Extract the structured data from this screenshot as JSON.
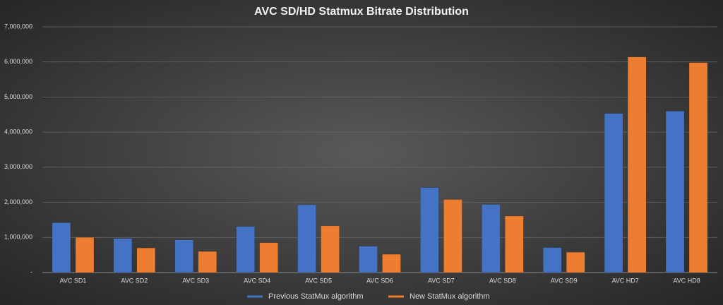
{
  "chart_data": {
    "type": "bar",
    "title": "AVC SD/HD Statmux Bitrate Distribution",
    "categories": [
      "AVC SD1",
      "AVC SD2",
      "AVC SD3",
      "AVC SD4",
      "AVC SD5",
      "AVC SD6",
      "AVC SD7",
      "AVC SD8",
      "AVC SD9",
      "AVC HD7",
      "AVC HD8"
    ],
    "series": [
      {
        "name": "Previous StatMux algorithm",
        "color": "#4472c4",
        "values": [
          1420000,
          970000,
          930000,
          1310000,
          1930000,
          750000,
          2420000,
          1940000,
          710000,
          4530000,
          4600000
        ]
      },
      {
        "name": "New StatMux algorithm",
        "color": "#ed7d31",
        "values": [
          1000000,
          700000,
          600000,
          850000,
          1330000,
          520000,
          2080000,
          1610000,
          580000,
          6140000,
          5980000
        ]
      }
    ],
    "ylim": [
      0,
      7000000
    ],
    "yticks": [
      {
        "value": 0,
        "label": "-"
      },
      {
        "value": 1000000,
        "label": "1,000,000"
      },
      {
        "value": 2000000,
        "label": "2,000,000"
      },
      {
        "value": 3000000,
        "label": "3,000,000"
      },
      {
        "value": 4000000,
        "label": "4,000,000"
      },
      {
        "value": 5000000,
        "label": "5,000,000"
      },
      {
        "value": 6000000,
        "label": "6,000,000"
      },
      {
        "value": 7000000,
        "label": "7,000,000"
      }
    ],
    "grid": true,
    "legend": "bottom"
  }
}
